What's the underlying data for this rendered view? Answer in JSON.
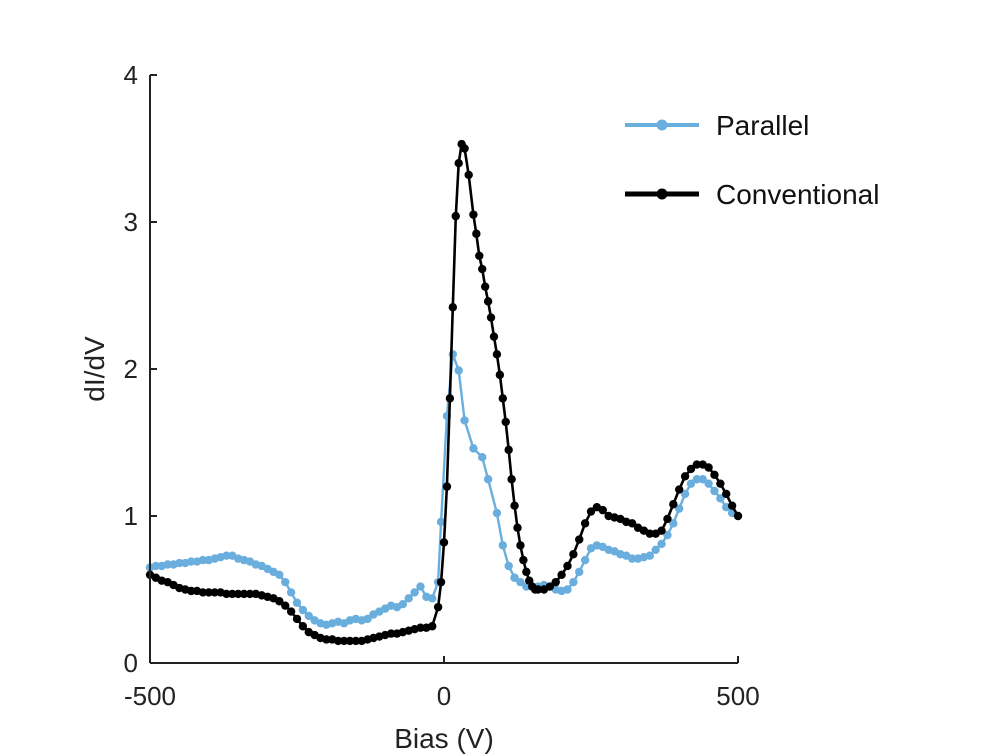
{
  "chart_data": {
    "type": "line",
    "xlabel": "Bias (V)",
    "ylabel": "dI/dV",
    "xlim": [
      -500,
      500
    ],
    "ylim": [
      0,
      4
    ],
    "xticks": [
      "-500",
      "0",
      "500"
    ],
    "yticks": [
      "0",
      "1",
      "2",
      "3",
      "4"
    ],
    "grid": false,
    "legend_position": "top-right",
    "series": [
      {
        "name": "Parallel",
        "color": "#6aaedd",
        "points": [
          [
            -500,
            0.65
          ],
          [
            -490,
            0.66
          ],
          [
            -480,
            0.66
          ],
          [
            -470,
            0.67
          ],
          [
            -460,
            0.67
          ],
          [
            -450,
            0.68
          ],
          [
            -440,
            0.68
          ],
          [
            -430,
            0.69
          ],
          [
            -420,
            0.69
          ],
          [
            -410,
            0.7
          ],
          [
            -400,
            0.7
          ],
          [
            -390,
            0.71
          ],
          [
            -380,
            0.72
          ],
          [
            -370,
            0.73
          ],
          [
            -360,
            0.73
          ],
          [
            -350,
            0.71
          ],
          [
            -340,
            0.7
          ],
          [
            -330,
            0.69
          ],
          [
            -320,
            0.67
          ],
          [
            -310,
            0.66
          ],
          [
            -300,
            0.64
          ],
          [
            -290,
            0.62
          ],
          [
            -280,
            0.6
          ],
          [
            -270,
            0.55
          ],
          [
            -260,
            0.48
          ],
          [
            -250,
            0.41
          ],
          [
            -240,
            0.36
          ],
          [
            -230,
            0.32
          ],
          [
            -220,
            0.29
          ],
          [
            -210,
            0.27
          ],
          [
            -200,
            0.26
          ],
          [
            -190,
            0.27
          ],
          [
            -180,
            0.28
          ],
          [
            -170,
            0.27
          ],
          [
            -160,
            0.29
          ],
          [
            -150,
            0.3
          ],
          [
            -140,
            0.29
          ],
          [
            -130,
            0.3
          ],
          [
            -120,
            0.33
          ],
          [
            -110,
            0.35
          ],
          [
            -100,
            0.37
          ],
          [
            -90,
            0.39
          ],
          [
            -80,
            0.38
          ],
          [
            -70,
            0.4
          ],
          [
            -60,
            0.44
          ],
          [
            -50,
            0.48
          ],
          [
            -40,
            0.52
          ],
          [
            -30,
            0.45
          ],
          [
            -20,
            0.44
          ],
          [
            -10,
            0.55
          ],
          [
            -5,
            0.96
          ],
          [
            5,
            1.68
          ],
          [
            15,
            2.1
          ],
          [
            25,
            1.99
          ],
          [
            35,
            1.65
          ],
          [
            50,
            1.46
          ],
          [
            65,
            1.4
          ],
          [
            75,
            1.25
          ],
          [
            90,
            1.02
          ],
          [
            100,
            0.8
          ],
          [
            110,
            0.66
          ],
          [
            120,
            0.58
          ],
          [
            130,
            0.55
          ],
          [
            140,
            0.52
          ],
          [
            150,
            0.52
          ],
          [
            160,
            0.52
          ],
          [
            170,
            0.53
          ],
          [
            180,
            0.52
          ],
          [
            190,
            0.5
          ],
          [
            200,
            0.49
          ],
          [
            210,
            0.5
          ],
          [
            220,
            0.55
          ],
          [
            230,
            0.62
          ],
          [
            240,
            0.7
          ],
          [
            250,
            0.78
          ],
          [
            260,
            0.8
          ],
          [
            270,
            0.79
          ],
          [
            280,
            0.77
          ],
          [
            290,
            0.76
          ],
          [
            300,
            0.74
          ],
          [
            310,
            0.73
          ],
          [
            320,
            0.71
          ],
          [
            330,
            0.71
          ],
          [
            340,
            0.72
          ],
          [
            350,
            0.73
          ],
          [
            360,
            0.77
          ],
          [
            370,
            0.81
          ],
          [
            380,
            0.87
          ],
          [
            390,
            0.95
          ],
          [
            400,
            1.05
          ],
          [
            410,
            1.15
          ],
          [
            420,
            1.22
          ],
          [
            430,
            1.25
          ],
          [
            440,
            1.25
          ],
          [
            450,
            1.22
          ],
          [
            460,
            1.17
          ],
          [
            470,
            1.12
          ],
          [
            480,
            1.06
          ],
          [
            490,
            1.02
          ],
          [
            500,
            1.0
          ]
        ]
      },
      {
        "name": "Conventional",
        "color": "#000000",
        "points": [
          [
            -500,
            0.6
          ],
          [
            -490,
            0.58
          ],
          [
            -480,
            0.56
          ],
          [
            -470,
            0.55
          ],
          [
            -460,
            0.53
          ],
          [
            -450,
            0.51
          ],
          [
            -440,
            0.5
          ],
          [
            -430,
            0.49
          ],
          [
            -420,
            0.49
          ],
          [
            -410,
            0.48
          ],
          [
            -400,
            0.48
          ],
          [
            -390,
            0.48
          ],
          [
            -380,
            0.48
          ],
          [
            -370,
            0.47
          ],
          [
            -360,
            0.47
          ],
          [
            -350,
            0.47
          ],
          [
            -340,
            0.47
          ],
          [
            -330,
            0.47
          ],
          [
            -320,
            0.47
          ],
          [
            -310,
            0.46
          ],
          [
            -300,
            0.45
          ],
          [
            -290,
            0.44
          ],
          [
            -280,
            0.42
          ],
          [
            -270,
            0.39
          ],
          [
            -260,
            0.35
          ],
          [
            -250,
            0.3
          ],
          [
            -240,
            0.25
          ],
          [
            -230,
            0.21
          ],
          [
            -220,
            0.19
          ],
          [
            -210,
            0.17
          ],
          [
            -200,
            0.16
          ],
          [
            -190,
            0.16
          ],
          [
            -180,
            0.15
          ],
          [
            -170,
            0.15
          ],
          [
            -160,
            0.15
          ],
          [
            -150,
            0.15
          ],
          [
            -140,
            0.15
          ],
          [
            -130,
            0.16
          ],
          [
            -120,
            0.17
          ],
          [
            -110,
            0.18
          ],
          [
            -100,
            0.19
          ],
          [
            -90,
            0.2
          ],
          [
            -80,
            0.2
          ],
          [
            -70,
            0.21
          ],
          [
            -60,
            0.22
          ],
          [
            -50,
            0.23
          ],
          [
            -40,
            0.24
          ],
          [
            -30,
            0.24
          ],
          [
            -20,
            0.25
          ],
          [
            -10,
            0.38
          ],
          [
            -5,
            0.55
          ],
          [
            0,
            0.82
          ],
          [
            5,
            1.2
          ],
          [
            10,
            1.8
          ],
          [
            15,
            2.42
          ],
          [
            20,
            3.04
          ],
          [
            25,
            3.4
          ],
          [
            30,
            3.53
          ],
          [
            35,
            3.5
          ],
          [
            42,
            3.32
          ],
          [
            50,
            3.05
          ],
          [
            55,
            2.92
          ],
          [
            60,
            2.77
          ],
          [
            65,
            2.68
          ],
          [
            70,
            2.56
          ],
          [
            75,
            2.46
          ],
          [
            80,
            2.35
          ],
          [
            85,
            2.22
          ],
          [
            90,
            2.1
          ],
          [
            95,
            1.96
          ],
          [
            100,
            1.8
          ],
          [
            105,
            1.64
          ],
          [
            110,
            1.45
          ],
          [
            115,
            1.25
          ],
          [
            120,
            1.07
          ],
          [
            125,
            0.92
          ],
          [
            130,
            0.8
          ],
          [
            135,
            0.7
          ],
          [
            140,
            0.62
          ],
          [
            145,
            0.56
          ],
          [
            150,
            0.52
          ],
          [
            155,
            0.5
          ],
          [
            160,
            0.5
          ],
          [
            170,
            0.5
          ],
          [
            180,
            0.52
          ],
          [
            190,
            0.55
          ],
          [
            200,
            0.6
          ],
          [
            210,
            0.66
          ],
          [
            220,
            0.74
          ],
          [
            230,
            0.84
          ],
          [
            240,
            0.95
          ],
          [
            250,
            1.03
          ],
          [
            260,
            1.06
          ],
          [
            270,
            1.04
          ],
          [
            280,
            1.0
          ],
          [
            290,
            0.99
          ],
          [
            300,
            0.98
          ],
          [
            310,
            0.96
          ],
          [
            320,
            0.95
          ],
          [
            330,
            0.92
          ],
          [
            340,
            0.9
          ],
          [
            350,
            0.88
          ],
          [
            360,
            0.88
          ],
          [
            370,
            0.9
          ],
          [
            380,
            0.98
          ],
          [
            390,
            1.08
          ],
          [
            400,
            1.18
          ],
          [
            410,
            1.27
          ],
          [
            420,
            1.32
          ],
          [
            430,
            1.35
          ],
          [
            440,
            1.35
          ],
          [
            450,
            1.33
          ],
          [
            460,
            1.28
          ],
          [
            470,
            1.22
          ],
          [
            480,
            1.15
          ],
          [
            490,
            1.07
          ],
          [
            500,
            1.0
          ]
        ]
      }
    ]
  }
}
